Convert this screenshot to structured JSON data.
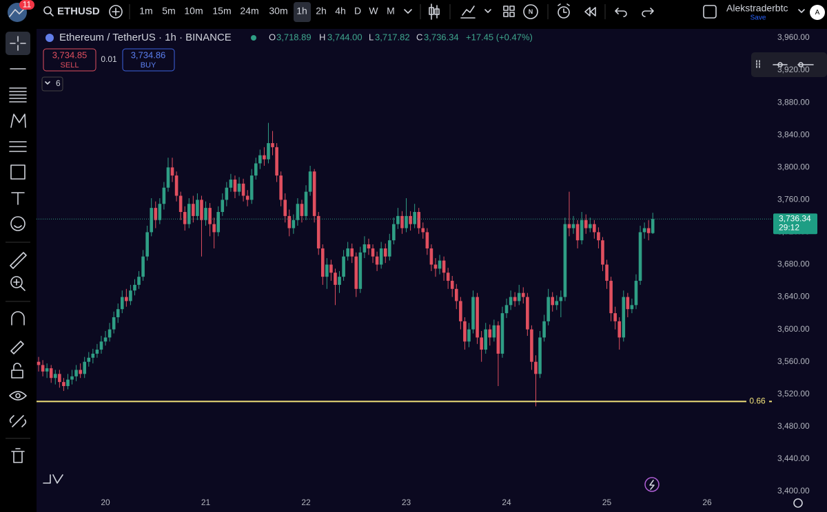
{
  "toolbar": {
    "badge": "11",
    "symbol": "ETHUSD",
    "intervals": [
      "1m",
      "5m",
      "10m",
      "15m",
      "24m",
      "30m",
      "1h",
      "2h",
      "4h",
      "D",
      "W",
      "M"
    ],
    "n_icon": "N",
    "user": "Alekstraderbtc",
    "save": "Save",
    "avatar": "A"
  },
  "legend": {
    "title": "Ethereum / TetherUS · 1h · BINANCE",
    "open_label": "O",
    "open": "3,718.89",
    "high_label": "H",
    "high": "3,744.00",
    "low_label": "L",
    "low": "3,717.82",
    "close_label": "C",
    "close": "3,736.34",
    "change": "+17.45 (+0.47%)"
  },
  "trade": {
    "sell_price": "3,734.85",
    "sell": "SELL",
    "spread": "0.01",
    "buy_price": "3,734.86",
    "buy": "BUY",
    "indicators": "6"
  },
  "chart_data": {
    "type": "candlestick",
    "categories": [
      null,
      null,
      null,
      null,
      null,
      null,
      null,
      null,
      null,
      null,
      null,
      null,
      null,
      null,
      null,
      null,
      "20",
      null,
      null,
      null,
      null,
      null,
      null,
      null,
      null,
      null,
      null,
      null,
      null,
      null,
      null,
      null,
      null,
      null,
      null,
      null,
      null,
      null,
      null,
      null,
      "21",
      null,
      null,
      null,
      null,
      null,
      null,
      null,
      null,
      null,
      null,
      null,
      null,
      null,
      null,
      null,
      null,
      null,
      null,
      null,
      null,
      null,
      null,
      null,
      "22",
      null,
      null,
      null,
      null,
      null,
      null,
      null,
      null,
      null,
      null,
      null,
      null,
      null,
      null,
      null,
      null,
      null,
      null,
      null,
      null,
      null,
      null,
      null,
      "23",
      null,
      null,
      null,
      null,
      null,
      null,
      null,
      null,
      null,
      null,
      null,
      null,
      null,
      null,
      null,
      null,
      null,
      null,
      null,
      null,
      null,
      null,
      null,
      "24",
      null,
      null,
      null,
      null,
      null,
      null,
      null,
      null,
      null,
      null,
      null,
      null,
      null,
      null,
      null,
      null,
      null,
      null,
      null,
      null,
      null,
      null,
      null,
      "25",
      null,
      null,
      null,
      null,
      null,
      null,
      null,
      null,
      null,
      null,
      null,
      null,
      null,
      null,
      null,
      null,
      null,
      null,
      null,
      null,
      null,
      null,
      null,
      "26",
      null,
      null,
      null,
      null,
      null,
      null,
      null,
      null,
      null,
      null,
      null,
      null,
      null,
      null,
      null
    ],
    "open": [
      3560,
      3556,
      3548,
      3552,
      3540,
      3545,
      3535,
      3530,
      3538,
      3542,
      3550,
      3545,
      3560,
      3565,
      3570,
      3575,
      3585,
      3590,
      3600,
      3615,
      3625,
      3640,
      3635,
      3648,
      3655,
      3665,
      3690,
      3720,
      3750,
      3735,
      3755,
      3775,
      3800,
      3790,
      3765,
      3745,
      3730,
      3755,
      3740,
      3760,
      3735,
      3750,
      3730,
      3720,
      3745,
      3760,
      3775,
      3785,
      3770,
      3780,
      3765,
      3760,
      3790,
      3805,
      3815,
      3810,
      3830,
      3825,
      3790,
      3760,
      3740,
      3725,
      3735,
      3755,
      3740,
      3770,
      3795,
      3740,
      3700,
      3665,
      3680,
      3670,
      3655,
      3665,
      3690,
      3700,
      3690,
      3650,
      3695,
      3705,
      3700,
      3690,
      3680,
      3700,
      3690,
      3710,
      3730,
      3740,
      3725,
      3740,
      3730,
      3745,
      3725,
      3720,
      3700,
      3680,
      3675,
      3685,
      3670,
      3660,
      3650,
      3635,
      3610,
      3585,
      3600,
      3640,
      3590,
      3575,
      3600,
      3590,
      3605,
      3570,
      3620,
      3630,
      3640,
      3635,
      3645,
      3640,
      3600,
      3560,
      3545,
      3590,
      3610,
      3640,
      3630,
      3635,
      3640,
      3730,
      3725,
      3730,
      3710,
      3735,
      3725,
      3730,
      3720,
      3710,
      3680,
      3660,
      3620,
      3610,
      3590,
      3640,
      3625,
      3630,
      3660,
      3720,
      3725,
      3718.89,
      null,
      null,
      null,
      null,
      null,
      null,
      null,
      null,
      null,
      null,
      null,
      null,
      null,
      null,
      null,
      null,
      null,
      null,
      null,
      null,
      null,
      null,
      null,
      null,
      null,
      null,
      null,
      null
    ],
    "high": [
      3566,
      3562,
      3558,
      3556,
      3550,
      3550,
      3540,
      3545,
      3550,
      3556,
      3558,
      3566,
      3572,
      3576,
      3582,
      3592,
      3598,
      3608,
      3622,
      3632,
      3648,
      3650,
      3655,
      3662,
      3672,
      3698,
      3728,
      3762,
      3758,
      3762,
      3782,
      3812,
      3812,
      3795,
      3770,
      3752,
      3762,
      3765,
      3768,
      3765,
      3758,
      3756,
      3738,
      3752,
      3768,
      3782,
      3792,
      3790,
      3788,
      3786,
      3772,
      3798,
      3812,
      3822,
      3825,
      3855,
      3845,
      3830,
      3795,
      3768,
      3748,
      3742,
      3762,
      3760,
      3778,
      3802,
      3798,
      3745,
      3705,
      3688,
      3686,
      3675,
      3672,
      3698,
      3708,
      3706,
      3695,
      3702,
      3715,
      3712,
      3705,
      3696,
      3708,
      3706,
      3718,
      3738,
      3750,
      3746,
      3762,
      3746,
      3755,
      3750,
      3732,
      3725,
      3705,
      3688,
      3692,
      3690,
      3676,
      3666,
      3656,
      3640,
      3615,
      3608,
      3648,
      3645,
      3598,
      3608,
      3606,
      3612,
      3610,
      3628,
      3638,
      3648,
      3646,
      3655,
      3652,
      3645,
      3605,
      3568,
      3598,
      3618,
      3650,
      3646,
      3642,
      3648,
      3738,
      3770,
      3740,
      3735,
      3745,
      3742,
      3738,
      3735,
      3726,
      3714,
      3686,
      3665,
      3628,
      3615,
      3648,
      3645,
      3638,
      3668,
      3728,
      3732,
      3735,
      3744,
      null,
      null,
      null,
      null,
      null,
      null,
      null,
      null,
      null,
      null,
      null,
      null,
      null,
      null,
      null,
      null,
      null,
      null,
      null,
      null,
      null,
      null,
      null,
      null,
      null,
      null,
      null,
      null
    ],
    "low": [
      3548,
      3542,
      3540,
      3534,
      3532,
      3528,
      3524,
      3526,
      3532,
      3536,
      3540,
      3540,
      3554,
      3558,
      3565,
      3570,
      3580,
      3585,
      3595,
      3608,
      3620,
      3628,
      3630,
      3642,
      3650,
      3660,
      3685,
      3715,
      3725,
      3730,
      3748,
      3770,
      3782,
      3758,
      3735,
      3722,
      3725,
      3732,
      3735,
      3690,
      3728,
      3715,
      3700,
      3715,
      3740,
      3752,
      3770,
      3762,
      3765,
      3758,
      3752,
      3755,
      3785,
      3798,
      3802,
      3805,
      3815,
      3782,
      3752,
      3732,
      3715,
      3718,
      3728,
      3732,
      3735,
      3765,
      3732,
      3692,
      3655,
      3650,
      3660,
      3630,
      3645,
      3660,
      3685,
      3682,
      3640,
      3645,
      3688,
      3692,
      3682,
      3672,
      3675,
      3682,
      3685,
      3705,
      3724,
      3718,
      3720,
      3722,
      3725,
      3718,
      3712,
      3692,
      3672,
      3665,
      3668,
      3660,
      3650,
      3640,
      3625,
      3600,
      3575,
      3578,
      3595,
      3582,
      3560,
      3570,
      3580,
      3585,
      3530,
      3565,
      3614,
      3624,
      3628,
      3630,
      3632,
      3592,
      3550,
      3505,
      3540,
      3585,
      3605,
      3622,
      3624,
      3615,
      3635,
      3715,
      3718,
      3700,
      3705,
      3718,
      3720,
      3712,
      3700,
      3672,
      3650,
      3610,
      3600,
      3575,
      3585,
      3615,
      3620,
      3625,
      3655,
      3712,
      3710,
      3717.82,
      null,
      null,
      null,
      null,
      null,
      null,
      null,
      null,
      null,
      null,
      null,
      null,
      null,
      null,
      null,
      null,
      null,
      null,
      null,
      null,
      null,
      null,
      null,
      null,
      null,
      null,
      null,
      null
    ],
    "close": [
      3556,
      3548,
      3552,
      3540,
      3545,
      3535,
      3530,
      3538,
      3542,
      3550,
      3545,
      3560,
      3565,
      3570,
      3575,
      3585,
      3590,
      3600,
      3615,
      3625,
      3640,
      3635,
      3648,
      3655,
      3665,
      3690,
      3720,
      3750,
      3735,
      3755,
      3775,
      3800,
      3790,
      3765,
      3745,
      3730,
      3755,
      3740,
      3760,
      3735,
      3750,
      3730,
      3720,
      3745,
      3760,
      3775,
      3785,
      3770,
      3780,
      3765,
      3760,
      3790,
      3805,
      3815,
      3810,
      3830,
      3825,
      3790,
      3760,
      3740,
      3725,
      3735,
      3755,
      3740,
      3770,
      3795,
      3740,
      3700,
      3665,
      3680,
      3670,
      3655,
      3665,
      3690,
      3700,
      3690,
      3650,
      3695,
      3705,
      3700,
      3690,
      3680,
      3700,
      3690,
      3710,
      3730,
      3740,
      3725,
      3740,
      3730,
      3745,
      3725,
      3720,
      3700,
      3680,
      3675,
      3685,
      3670,
      3660,
      3650,
      3635,
      3610,
      3585,
      3600,
      3640,
      3590,
      3575,
      3600,
      3590,
      3605,
      3570,
      3620,
      3630,
      3640,
      3635,
      3645,
      3640,
      3600,
      3560,
      3545,
      3590,
      3610,
      3640,
      3630,
      3635,
      3640,
      3730,
      3725,
      3730,
      3710,
      3735,
      3725,
      3730,
      3720,
      3710,
      3680,
      3660,
      3620,
      3610,
      3590,
      3640,
      3625,
      3630,
      3660,
      3720,
      3725,
      3718.89,
      3736.34,
      null,
      null,
      null,
      null,
      null,
      null,
      null,
      null,
      null,
      null,
      null,
      null,
      null,
      null,
      null,
      null,
      null,
      null,
      null,
      null,
      null,
      null,
      null,
      null,
      null,
      null,
      null,
      null
    ],
    "up_color": "#2f9e85",
    "down_color": "#e04f5f",
    "ylim": [
      3400,
      3960
    ],
    "yticks": [
      {
        "value": 3400,
        "label": "3,400.00"
      },
      {
        "value": 3440,
        "label": "3,440.00"
      },
      {
        "value": 3480,
        "label": "3,480.00"
      },
      {
        "value": 3520,
        "label": "3,520.00"
      },
      {
        "value": 3560,
        "label": "3,560.00"
      },
      {
        "value": 3600,
        "label": "3,600.00"
      },
      {
        "value": 3640,
        "label": "3,640.00"
      },
      {
        "value": 3680,
        "label": "3,680.00"
      },
      {
        "value": 3720,
        "label": "3,720.00"
      },
      {
        "value": 3760,
        "label": "3,760.00"
      },
      {
        "value": 3800,
        "label": "3,800.00"
      },
      {
        "value": 3840,
        "label": "3,840.00"
      },
      {
        "value": 3880,
        "label": "3,880.00"
      },
      {
        "value": 3920,
        "label": "3,920.00"
      },
      {
        "value": 3960,
        "label": "3,960.00"
      }
    ],
    "hline": {
      "value": 3511,
      "label": "0.66",
      "color": "#f2e27a"
    },
    "last_price_label": "3,736.34",
    "countdown": "29:12"
  }
}
